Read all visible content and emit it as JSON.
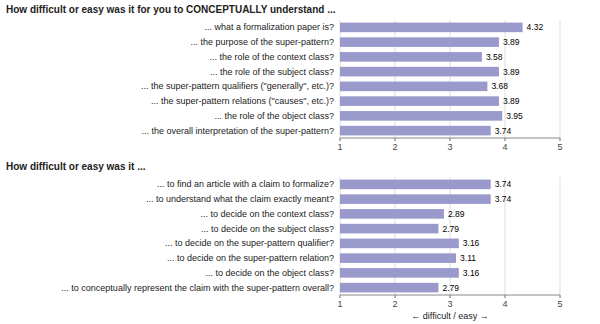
{
  "chart_data": [
    {
      "type": "bar",
      "orientation": "horizontal",
      "title": "How difficult or easy was it for you to CONCEPTUALLY understand ...",
      "categories": [
        "... what a formalization paper is?",
        "... the purpose of the super-pattern?",
        "... the role of the context class?",
        "... the role of the subject class?",
        "... the super-pattern qualifiers (\"generally\", etc.)?",
        "... the super-pattern relations (\"causes\", etc.)?",
        "... the role of the object class?",
        "... the overall interpretation of the super-pattern?"
      ],
      "values": [
        4.32,
        3.89,
        3.58,
        3.89,
        3.68,
        3.89,
        3.95,
        3.74
      ],
      "color": "#9999cc",
      "xlim": [
        1,
        5
      ],
      "xticks": [
        1,
        2,
        3,
        4,
        5
      ],
      "grid": true,
      "data_labels": true
    },
    {
      "type": "bar",
      "orientation": "horizontal",
      "title": "How difficult or easy was it ...",
      "categories": [
        "... to find an article with a claim to formalize?",
        "... to understand what the claim exactly meant?",
        "... to decide on the context class?",
        "... to decide on the subject class?",
        "... to decide on the super-pattern qualifier?",
        "... to decide on the super-pattern relation?",
        "... to decide on the object class?",
        "... to conceptually represent the claim with the super-pattern overall?"
      ],
      "values": [
        3.74,
        3.74,
        2.89,
        2.79,
        3.16,
        3.11,
        3.16,
        2.79
      ],
      "color": "#9999cc",
      "xlim": [
        1,
        5
      ],
      "xticks": [
        1,
        2,
        3,
        4,
        5
      ],
      "grid": true,
      "data_labels": true,
      "xlabel": "← difficult / easy →"
    }
  ]
}
